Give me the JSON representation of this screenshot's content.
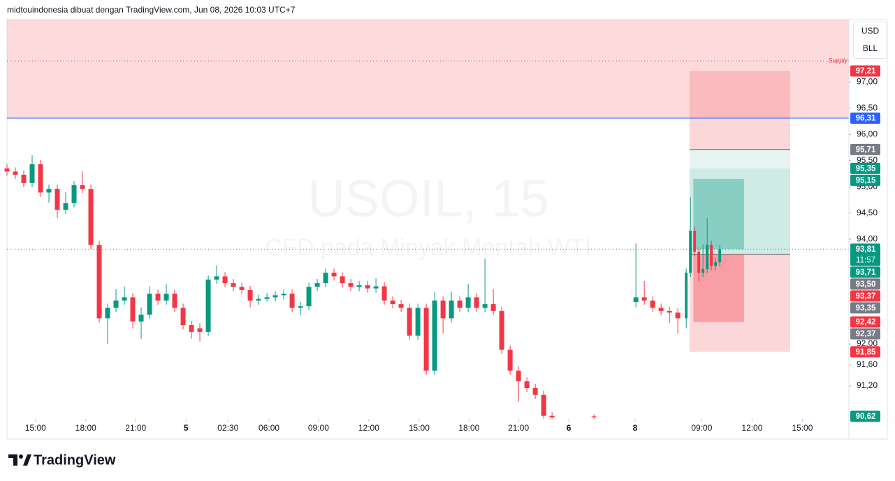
{
  "header": {
    "text": "midtouindonesia dibuat dengan TradingView.com, Jun 08, 2026 10:03 UTC+7"
  },
  "chart_data": {
    "type": "candlestick",
    "watermark": "USOIL, 15",
    "watermark_sub": "CFD pada Minyak Mentah WTI",
    "currency": "USD",
    "unit": "BLL",
    "up_color": "#089981",
    "down_color": "#f23645",
    "grid": false,
    "x": [
      0,
      2,
      4,
      6,
      8,
      10,
      12,
      14,
      16,
      18,
      20,
      22,
      24,
      26,
      28,
      30,
      32,
      34,
      36,
      38,
      40,
      42,
      44,
      46,
      48,
      50,
      52,
      54,
      56,
      58,
      60,
      62,
      64,
      66,
      68,
      70,
      72,
      74,
      76,
      78,
      80,
      82,
      84,
      86,
      88,
      90,
      92,
      94,
      96,
      98,
      100,
      102,
      104,
      106,
      108,
      110,
      112,
      114,
      116,
      118,
      120,
      122,
      124,
      126,
      128,
      130,
      140,
      150,
      152,
      154,
      156,
      158,
      160,
      162,
      163,
      164,
      165,
      166,
      167,
      168,
      169,
      170
    ],
    "ohlc": [
      [
        95.35,
        95.43,
        95.21,
        95.29
      ],
      [
        95.29,
        95.37,
        95.15,
        95.23
      ],
      [
        95.23,
        95.31,
        94.99,
        95.07
      ],
      [
        95.07,
        95.6,
        94.99,
        95.43
      ],
      [
        95.43,
        95.51,
        94.81,
        94.89
      ],
      [
        94.89,
        95.04,
        94.7,
        94.96
      ],
      [
        94.96,
        95.04,
        94.4,
        94.56
      ],
      [
        94.56,
        94.9,
        94.48,
        94.69
      ],
      [
        94.69,
        95.11,
        94.61,
        95.03
      ],
      [
        95.03,
        95.3,
        94.88,
        94.96
      ],
      [
        94.96,
        95.04,
        93.81,
        93.89
      ],
      [
        93.89,
        93.97,
        92.41,
        92.49
      ],
      [
        92.49,
        92.77,
        92.0,
        92.69
      ],
      [
        92.69,
        93.05,
        92.61,
        92.83
      ],
      [
        92.83,
        93.1,
        92.75,
        92.89
      ],
      [
        92.89,
        92.97,
        92.3,
        92.43
      ],
      [
        92.43,
        92.7,
        92.1,
        92.56
      ],
      [
        92.56,
        93.1,
        92.48,
        92.96
      ],
      [
        92.96,
        93.04,
        92.75,
        92.83
      ],
      [
        92.83,
        93.15,
        92.75,
        92.96
      ],
      [
        92.96,
        93.04,
        92.61,
        92.69
      ],
      [
        92.69,
        92.77,
        92.28,
        92.36
      ],
      [
        92.36,
        92.44,
        92.1,
        92.23
      ],
      [
        92.3,
        92.4,
        92.05,
        92.23
      ],
      [
        92.23,
        93.31,
        92.15,
        93.23
      ],
      [
        93.23,
        93.5,
        93.15,
        93.29
      ],
      [
        93.29,
        93.37,
        93.08,
        93.16
      ],
      [
        93.16,
        93.24,
        93.01,
        93.09
      ],
      [
        93.09,
        93.17,
        92.95,
        93.03
      ],
      [
        93.03,
        93.11,
        92.7,
        92.83
      ],
      [
        92.83,
        92.94,
        92.75,
        92.86
      ],
      [
        92.86,
        92.97,
        92.81,
        92.89
      ],
      [
        92.89,
        93.01,
        92.81,
        92.93
      ],
      [
        92.93,
        93.04,
        92.85,
        92.96
      ],
      [
        92.96,
        93.04,
        92.61,
        92.69
      ],
      [
        92.69,
        92.8,
        92.55,
        92.72
      ],
      [
        92.72,
        93.17,
        92.64,
        93.09
      ],
      [
        93.09,
        93.24,
        93.01,
        93.16
      ],
      [
        93.16,
        93.44,
        93.08,
        93.36
      ],
      [
        93.36,
        93.44,
        93.21,
        93.29
      ],
      [
        93.29,
        93.37,
        93.08,
        93.16
      ],
      [
        93.16,
        93.24,
        93.01,
        93.09
      ],
      [
        93.09,
        93.2,
        93.01,
        93.12
      ],
      [
        93.12,
        93.2,
        92.98,
        93.06
      ],
      [
        93.06,
        93.25,
        92.98,
        93.1
      ],
      [
        93.1,
        93.18,
        92.75,
        92.83
      ],
      [
        92.83,
        92.91,
        92.68,
        92.76
      ],
      [
        92.76,
        92.84,
        92.61,
        92.69
      ],
      [
        92.69,
        92.77,
        92.08,
        92.16
      ],
      [
        92.16,
        92.77,
        92.08,
        92.69
      ],
      [
        92.69,
        92.77,
        91.41,
        91.49
      ],
      [
        91.49,
        93.0,
        91.41,
        92.83
      ],
      [
        92.83,
        92.91,
        92.2,
        92.49
      ],
      [
        92.49,
        93.0,
        92.41,
        92.83
      ],
      [
        92.83,
        92.91,
        92.61,
        92.69
      ],
      [
        92.69,
        93.15,
        92.61,
        92.89
      ],
      [
        92.89,
        92.97,
        92.61,
        92.69
      ],
      [
        92.69,
        93.63,
        92.61,
        92.76
      ],
      [
        92.76,
        93.05,
        92.55,
        92.63
      ],
      [
        92.63,
        92.71,
        91.81,
        91.89
      ],
      [
        91.89,
        91.97,
        91.41,
        91.49
      ],
      [
        91.49,
        91.57,
        90.9,
        91.29
      ],
      [
        91.29,
        91.37,
        91.08,
        91.16
      ],
      [
        91.16,
        91.24,
        90.95,
        91.03
      ],
      [
        91.03,
        91.11,
        90.58,
        90.63
      ],
      [
        90.63,
        90.7,
        90.56,
        90.6
      ],
      [
        90.62,
        90.66,
        90.56,
        90.6
      ],
      [
        92.8,
        93.92,
        92.7,
        92.89
      ],
      [
        92.89,
        93.2,
        92.75,
        92.83
      ],
      [
        92.83,
        92.91,
        92.61,
        92.69
      ],
      [
        92.69,
        92.77,
        92.55,
        92.63
      ],
      [
        92.63,
        92.71,
        92.4,
        92.6
      ],
      [
        92.6,
        92.68,
        92.2,
        92.49
      ],
      [
        92.49,
        93.44,
        92.3,
        93.36
      ],
      [
        93.36,
        94.8,
        93.28,
        94.16
      ],
      [
        94.16,
        94.24,
        93.68,
        93.76
      ],
      [
        93.76,
        93.84,
        93.2,
        93.36
      ],
      [
        93.36,
        93.9,
        93.28,
        93.43
      ],
      [
        93.43,
        94.4,
        93.35,
        93.89
      ],
      [
        93.89,
        93.97,
        93.41,
        93.49
      ],
      [
        93.49,
        93.64,
        93.4,
        93.56
      ],
      [
        93.56,
        93.89,
        93.48,
        93.81
      ]
    ],
    "xlim": [
      0,
      200.8
    ],
    "xticks": [
      {
        "value": 6.8,
        "label": "15:00"
      },
      {
        "value": 18.8,
        "label": "18:00"
      },
      {
        "value": 30.7,
        "label": "21:00"
      },
      {
        "value": 42.7,
        "label": "5"
      },
      {
        "value": 52.7,
        "label": "02:30"
      },
      {
        "value": 62.5,
        "label": "06:00"
      },
      {
        "value": 74.3,
        "label": "09:00"
      },
      {
        "value": 86.3,
        "label": "12:00"
      },
      {
        "value": 98.3,
        "label": "15:00"
      },
      {
        "value": 110.2,
        "label": "18:00"
      },
      {
        "value": 122,
        "label": "21:00"
      },
      {
        "value": 134,
        "label": "6"
      },
      {
        "value": 149.8,
        "label": "8"
      },
      {
        "value": 165.7,
        "label": "09:00"
      },
      {
        "value": 177.7,
        "label": "12:00"
      },
      {
        "value": 189.7,
        "label": "15:00"
      }
    ],
    "ylim": [
      90.56,
      98.19
    ],
    "yticks": [
      {
        "value": 97,
        "label": "97,00"
      },
      {
        "value": 96.5,
        "label": "96,50"
      },
      {
        "value": 96,
        "label": "96,00"
      },
      {
        "value": 95.5,
        "label": "95,50"
      },
      {
        "value": 95,
        "label": "95,00"
      },
      {
        "value": 94.5,
        "label": "94,50"
      },
      {
        "value": 94,
        "label": "94,00"
      },
      {
        "value": 92,
        "label": "92,00"
      },
      {
        "value": 91.6,
        "label": "91,60"
      },
      {
        "value": 91.2,
        "label": "91,20"
      }
    ],
    "supply_zone": {
      "label": "Supply",
      "top": 98.19,
      "bottom": 96.31,
      "line": 97.4
    },
    "position": {
      "x_start": 162.8,
      "x_end": 186.8,
      "upper_stop": 97.21,
      "upper_entry": 95.71,
      "target": 95.35,
      "entry": 93.71,
      "stop": 91.85
    },
    "position_inner": {
      "x_start": 163.7,
      "x_end": 175.8,
      "target": 95.15,
      "current": 93.81,
      "entry": 93.71,
      "stop": 92.42
    },
    "markers": [
      {
        "value": 97.21,
        "label": "97,21",
        "color": "#f23645"
      },
      {
        "value": 96.31,
        "label": "96,31",
        "color": "#2962ff",
        "line": "solid"
      },
      {
        "value": 95.71,
        "label": "95,71",
        "color": "#787b86"
      },
      {
        "value": 95.35,
        "label": "95,35",
        "color": "#089981"
      },
      {
        "value": 95.15,
        "label": "95,15",
        "color": "#089981"
      },
      {
        "value": 93.81,
        "label": "93,81",
        "color": "#089981",
        "countdown": "11:57",
        "line": "dotted"
      },
      {
        "value": 93.71,
        "label": "93,71",
        "color": "#089981"
      },
      {
        "value": 93.5,
        "label": "93,50",
        "color": "#787b86"
      },
      {
        "value": 93.37,
        "label": "93,37",
        "color": "#f23645"
      },
      {
        "value": 93.35,
        "label": "93,35",
        "color": "#787b86"
      },
      {
        "value": 92.42,
        "label": "92,42",
        "color": "#f23645"
      },
      {
        "value": 92.37,
        "label": "92,37",
        "color": "#787b86"
      },
      {
        "value": 91.85,
        "label": "91,85",
        "color": "#f23645"
      },
      {
        "value": 90.62,
        "label": "90,62",
        "color": "#089981"
      }
    ]
  },
  "footer": {
    "logo": "TradingView"
  }
}
